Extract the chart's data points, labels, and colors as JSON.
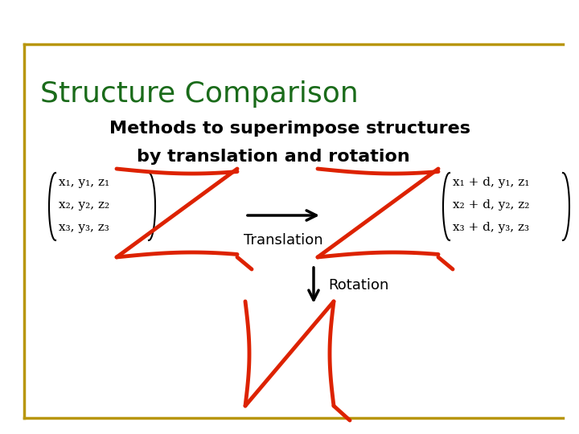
{
  "title": "Structure Comparison",
  "title_color": "#1a6b1a",
  "title_fontsize": 26,
  "subtitle1": "Methods to superimpose structures",
  "subtitle2": "by translation and rotation",
  "subtitle_fontsize": 16,
  "left_matrix": [
    "x₁, y₁, z₁",
    "x₂, y₂, z₂",
    "x₃, y₃, z₃"
  ],
  "right_matrix": [
    "x₁ + d, y₁, z₁",
    "x₂ + d, y₂, z₂",
    "x₃ + d, y₃, z₃"
  ],
  "translation_label": "Translation",
  "rotation_label": "Rotation",
  "matrix_fontsize": 11,
  "border_color": "#b8960c",
  "squiggle_color": "#dd2200",
  "bg_color": "#ffffff"
}
